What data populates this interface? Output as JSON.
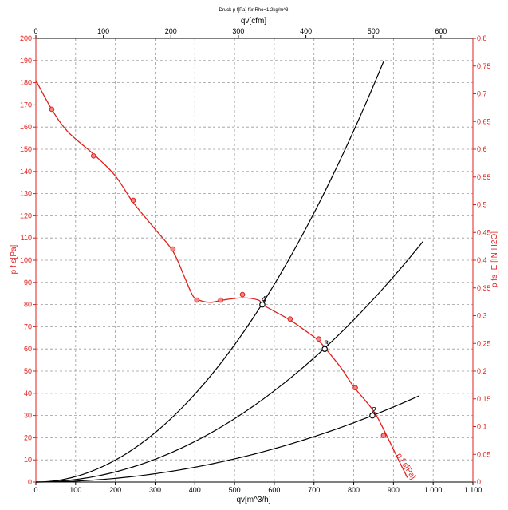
{
  "chart_data": {
    "type": "line",
    "title": "Druck p f[Pa] für Rho=1.2kg/m^3",
    "xlabel": "qv[m^3/h]",
    "xlabel_top": "qv[cfm]",
    "ylabel": "p  f  s[Pa]",
    "ylabel_right": "p fs_E [IN H2O]",
    "xlim": [
      0,
      1100
    ],
    "ylim": [
      0,
      200
    ],
    "xlim_top": [
      0,
      647.4
    ],
    "ylim_right": [
      0,
      0.8
    ],
    "x_ticks": [
      0,
      100,
      200,
      300,
      400,
      500,
      600,
      700,
      800,
      900,
      1000,
      1100
    ],
    "x_tick_labels": [
      "0",
      "100",
      "200",
      "300",
      "400",
      "500",
      "600",
      "700",
      "800",
      "900",
      "1.000",
      "1.100"
    ],
    "y_ticks": [
      0,
      10,
      20,
      30,
      40,
      50,
      60,
      70,
      80,
      90,
      100,
      110,
      120,
      130,
      140,
      150,
      160,
      170,
      180,
      190,
      200
    ],
    "y_tick_labels": [
      "0",
      "10",
      "20",
      "30",
      "40",
      "50",
      "60",
      "70",
      "80",
      "90",
      "100",
      "110",
      "120",
      "130",
      "140",
      "150",
      "160",
      "170",
      "180",
      "190",
      "200"
    ],
    "x_top_ticks": [
      0,
      100,
      200,
      300,
      400,
      500,
      600
    ],
    "x_top_tick_labels": [
      "0",
      "100",
      "200",
      "300",
      "400",
      "500",
      "600"
    ],
    "y_right_ticks": [
      0,
      0.05,
      0.1,
      0.15,
      0.2,
      0.25,
      0.3,
      0.35,
      0.4,
      0.45,
      0.5,
      0.55,
      0.6,
      0.65,
      0.7,
      0.75,
      0.8
    ],
    "y_right_tick_labels": [
      "0",
      "0,05",
      "0,1",
      "0,15",
      "0,2",
      "0,25",
      "0,3",
      "0,35",
      "0,4",
      "0,45",
      "0,5",
      "0,55",
      "0,6",
      "0,65",
      "0,7",
      "0,75",
      "0,8"
    ],
    "grid": true,
    "fan_curve": {
      "name": "p f s[Pa]",
      "color": "#e0201c",
      "x": [
        0,
        40,
        80,
        150,
        200,
        245,
        300,
        345,
        375,
        395,
        410,
        440,
        470,
        520,
        560,
        570,
        600,
        640,
        680,
        710,
        730,
        770,
        800,
        850,
        880,
        910,
        935
      ],
      "y": [
        181,
        168,
        158,
        147,
        138,
        126,
        114,
        104,
        92,
        84,
        82,
        81,
        82,
        83,
        82,
        80,
        77,
        73,
        68,
        64,
        60,
        51,
        43,
        32,
        22,
        11,
        2
      ],
      "markers": [
        {
          "x": 40,
          "y": 168
        },
        {
          "x": 145,
          "y": 147
        },
        {
          "x": 245,
          "y": 127
        },
        {
          "x": 345,
          "y": 105
        },
        {
          "x": 405,
          "y": 82
        },
        {
          "x": 465,
          "y": 82
        },
        {
          "x": 520,
          "y": 84.5
        },
        {
          "x": 640,
          "y": 73.5
        },
        {
          "x": 712,
          "y": 64.5
        },
        {
          "x": 804,
          "y": 42.5
        },
        {
          "x": 875,
          "y": 21
        }
      ]
    },
    "system_curves": [
      {
        "k": 0.00024747,
        "x_end": 875,
        "color": "#000000"
      },
      {
        "k": 0.00011423,
        "x_end": 975,
        "color": "#000000"
      },
      {
        "k": 4.177e-05,
        "x_end": 965,
        "color": "#000000"
      }
    ],
    "operating_points": [
      {
        "label": "4",
        "x": 570,
        "y": 80
      },
      {
        "label": "3",
        "x": 727,
        "y": 60
      },
      {
        "label": "2",
        "x": 847,
        "y": 30
      }
    ]
  }
}
